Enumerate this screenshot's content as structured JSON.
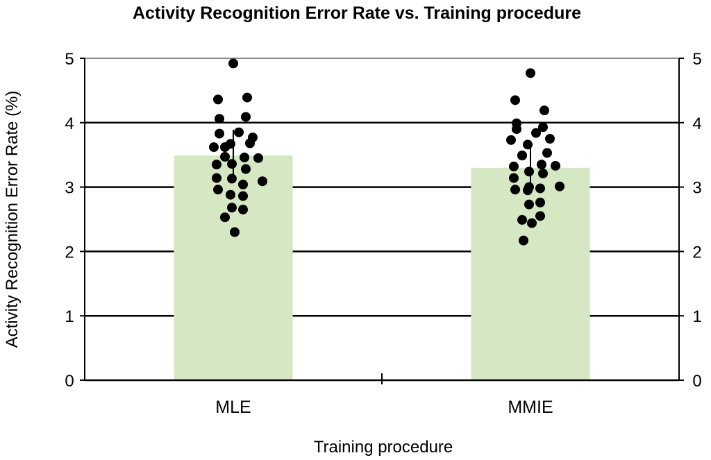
{
  "chart_data": {
    "type": "bar",
    "title": "Activity Recognition Error Rate vs. Training procedure",
    "xlabel": "Training procedure",
    "ylabel": "Activity Recognition Error Rate (%)",
    "categories": [
      "MLE",
      "MMIE"
    ],
    "values": [
      3.49,
      3.3
    ],
    "error": [
      0.4,
      0.38
    ],
    "ylim": [
      0,
      5
    ],
    "yticks": [
      0,
      1,
      2,
      3,
      4,
      5
    ],
    "grid": true,
    "secondary_y_axis": true,
    "bar_color": "#d5e8c3",
    "point_color": "#000000",
    "points": [
      [
        4.92,
        4.36,
        4.39,
        4.06,
        4.09,
        3.83,
        3.85,
        3.77,
        3.62,
        3.67,
        3.68,
        3.62,
        3.47,
        3.46,
        3.45,
        3.35,
        3.36,
        3.28,
        3.14,
        3.13,
        3.09,
        3.04,
        2.96,
        2.88,
        2.86,
        2.68,
        2.65,
        2.53,
        2.3
      ],
      [
        4.77,
        4.35,
        4.19,
        3.99,
        3.93,
        3.9,
        3.84,
        3.75,
        3.73,
        3.66,
        3.53,
        3.49,
        3.49,
        3.35,
        3.33,
        3.32,
        3.24,
        3.21,
        3.14,
        3.0,
        3.01,
        2.98,
        2.96,
        2.95,
        2.76,
        2.73,
        2.55,
        2.49,
        2.44,
        2.17
      ]
    ]
  }
}
